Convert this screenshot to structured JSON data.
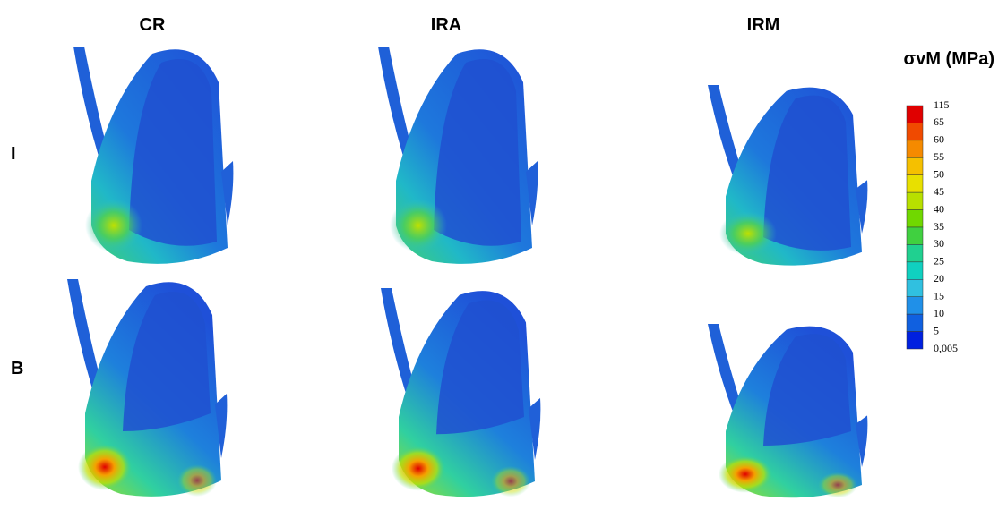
{
  "columns": [
    "CR",
    "IRA",
    "IRM"
  ],
  "rows": [
    "I",
    "B"
  ],
  "legend": {
    "title": "σvM  (MPa)",
    "labels": [
      "115",
      "65",
      "60",
      "55",
      "50",
      "45",
      "40",
      "35",
      "30",
      "25",
      "20",
      "15",
      "10",
      "5",
      "0,005"
    ],
    "colors": [
      "#e00000",
      "#f04a00",
      "#f58a00",
      "#f5c000",
      "#e8e000",
      "#b8e000",
      "#70d800",
      "#40d040",
      "#20d090",
      "#10d0c0",
      "#30c0e0",
      "#2090e8",
      "#1060e0",
      "#0020e0"
    ]
  }
}
